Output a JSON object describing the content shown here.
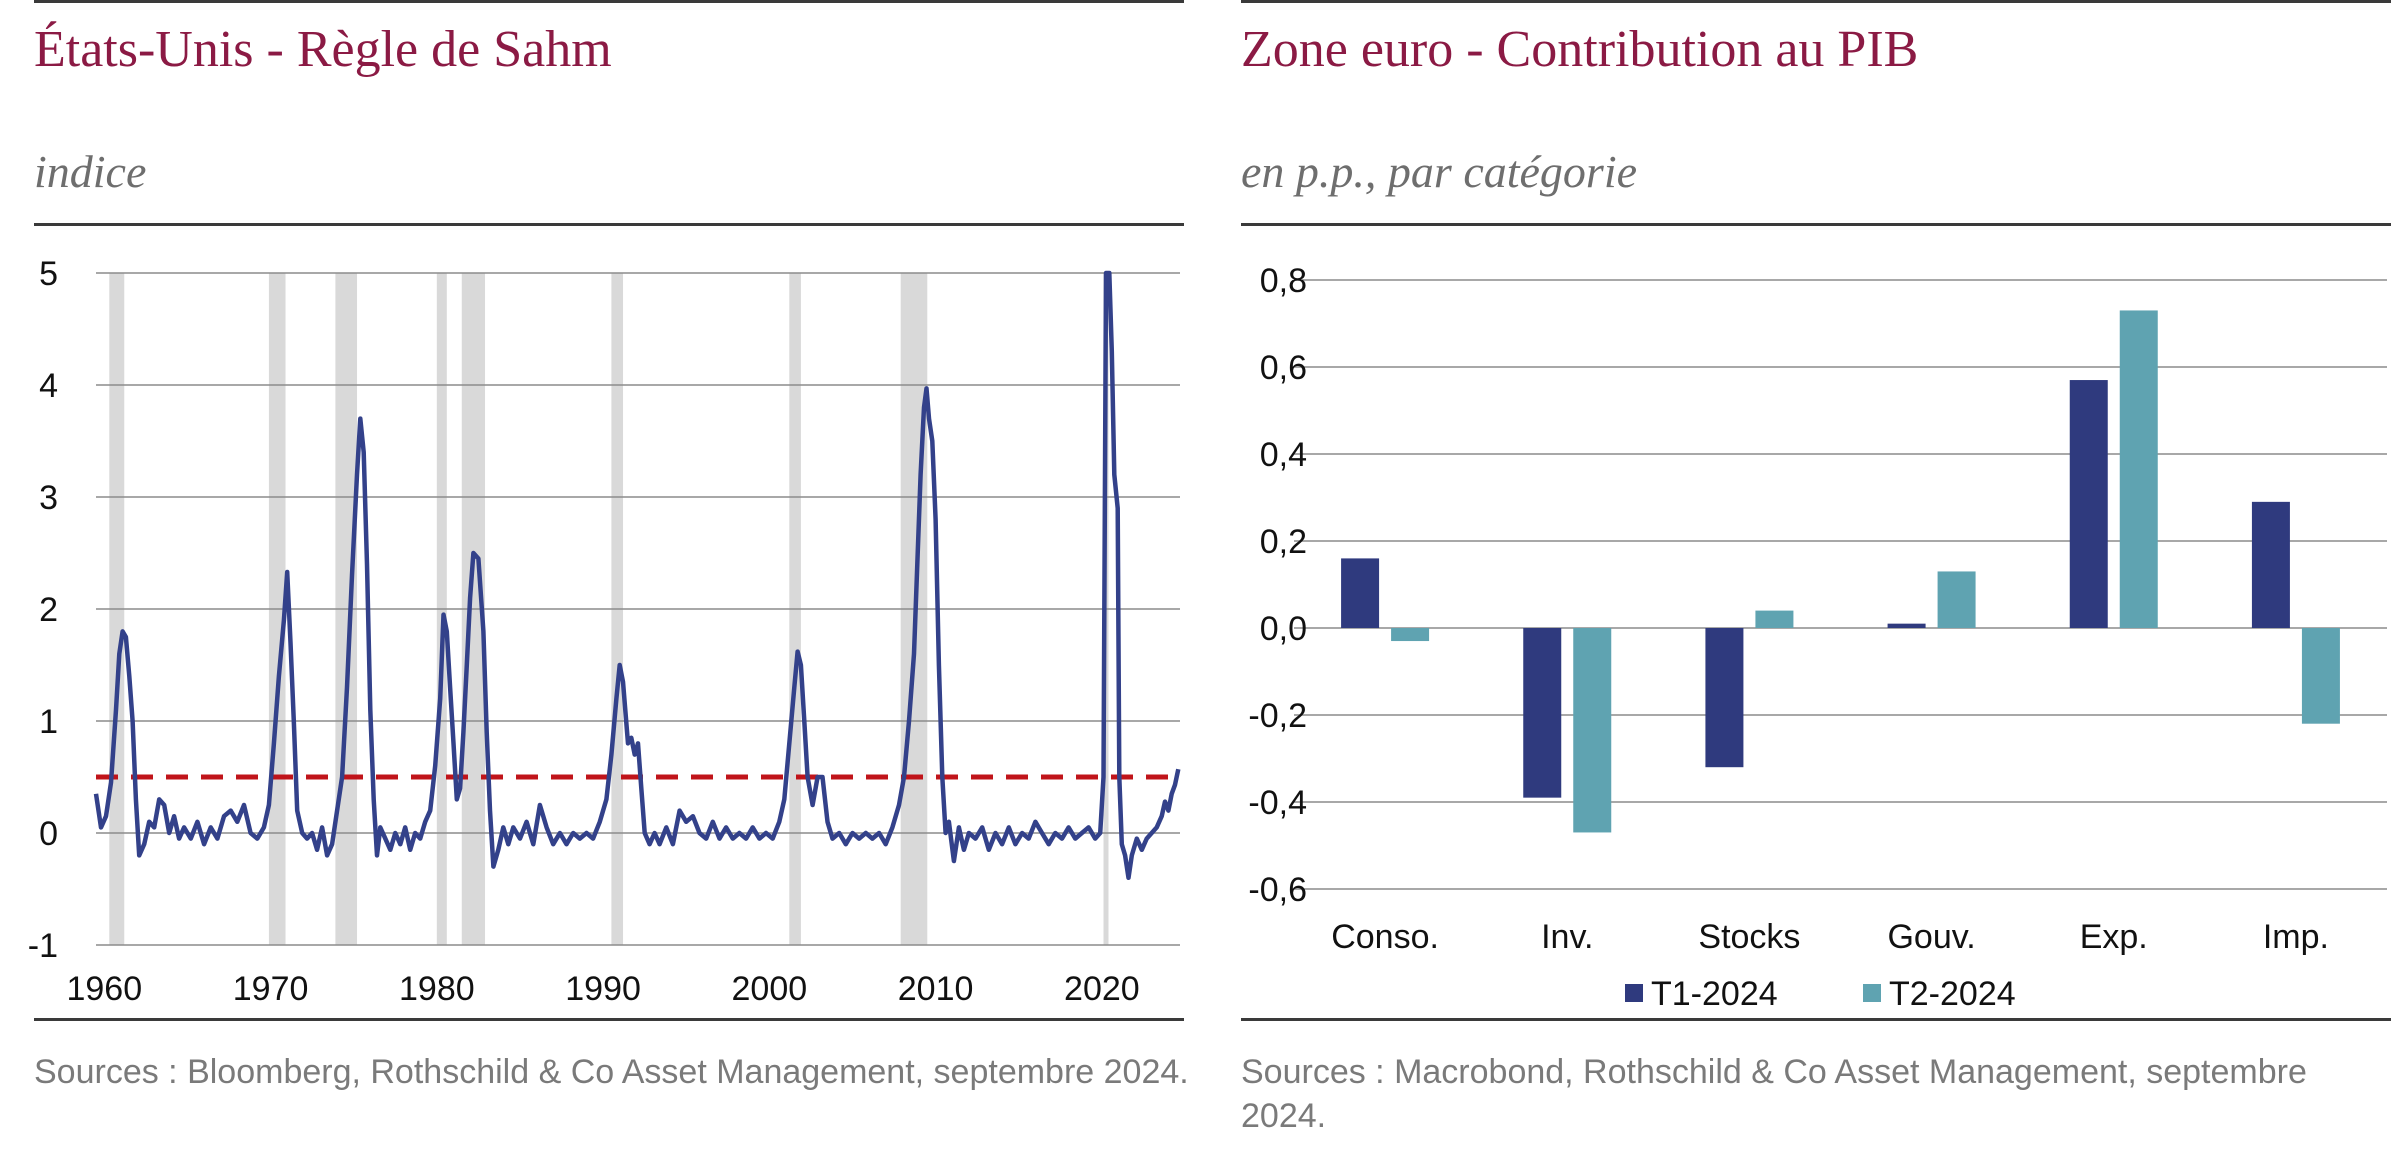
{
  "left": {
    "title": "États-Unis - Règle de Sahm",
    "subtitle": "indice",
    "source": "Sources : Bloomberg, Rothschild & Co Asset Management, septembre 2024."
  },
  "right": {
    "title": "Zone euro - Contribution au PIB",
    "subtitle": "en p.p., par catégorie",
    "source": "Sources : Macrobond, Rothschild & Co Asset Management, septembre 2024."
  },
  "colors": {
    "line": "#33418a",
    "threshold": "#c0141a",
    "recession": "#d9d9d9",
    "t1": "#2f3a7e",
    "t2": "#5fa3b1",
    "grid": "#8c8c8c"
  },
  "chart_data": [
    {
      "type": "line",
      "x_start": 1959.5,
      "x_end": 2024.7,
      "x_ticks": [
        1960,
        1970,
        1980,
        1990,
        2000,
        2010,
        2020
      ],
      "ylim": [
        -1,
        5
      ],
      "y_ticks": [
        5,
        4,
        3,
        2,
        1,
        0,
        -1
      ],
      "grid": true,
      "threshold": 0.5,
      "recessions": [
        [
          1960.3,
          1961.2
        ],
        [
          1969.9,
          1970.9
        ],
        [
          1973.9,
          1975.2
        ],
        [
          1980.0,
          1980.6
        ],
        [
          1981.5,
          1982.9
        ],
        [
          1990.5,
          1991.2
        ],
        [
          2001.2,
          2001.9
        ],
        [
          2007.9,
          2009.5
        ],
        [
          2020.1,
          2020.4
        ]
      ],
      "series": [
        {
          "points": [
            [
              1959.5,
              0.35
            ],
            [
              1959.8,
              0.05
            ],
            [
              1960.1,
              0.15
            ],
            [
              1960.4,
              0.45
            ],
            [
              1960.7,
              1.1
            ],
            [
              1960.9,
              1.6
            ],
            [
              1961.1,
              1.8
            ],
            [
              1961.3,
              1.75
            ],
            [
              1961.5,
              1.4
            ],
            [
              1961.7,
              1.0
            ],
            [
              1961.9,
              0.3
            ],
            [
              1962.1,
              -0.2
            ],
            [
              1962.4,
              -0.1
            ],
            [
              1962.7,
              0.1
            ],
            [
              1963.0,
              0.05
            ],
            [
              1963.3,
              0.3
            ],
            [
              1963.6,
              0.25
            ],
            [
              1963.9,
              0.0
            ],
            [
              1964.2,
              0.15
            ],
            [
              1964.5,
              -0.05
            ],
            [
              1964.8,
              0.05
            ],
            [
              1965.2,
              -0.05
            ],
            [
              1965.6,
              0.1
            ],
            [
              1966.0,
              -0.1
            ],
            [
              1966.4,
              0.05
            ],
            [
              1966.8,
              -0.05
            ],
            [
              1967.2,
              0.15
            ],
            [
              1967.6,
              0.2
            ],
            [
              1968.0,
              0.1
            ],
            [
              1968.4,
              0.25
            ],
            [
              1968.8,
              0.0
            ],
            [
              1969.2,
              -0.05
            ],
            [
              1969.6,
              0.05
            ],
            [
              1969.9,
              0.25
            ],
            [
              1970.2,
              0.8
            ],
            [
              1970.5,
              1.4
            ],
            [
              1970.8,
              1.9
            ],
            [
              1971.0,
              2.33
            ],
            [
              1971.2,
              1.7
            ],
            [
              1971.4,
              1.0
            ],
            [
              1971.6,
              0.2
            ],
            [
              1971.9,
              0.0
            ],
            [
              1972.2,
              -0.05
            ],
            [
              1972.5,
              0.0
            ],
            [
              1972.8,
              -0.15
            ],
            [
              1973.1,
              0.05
            ],
            [
              1973.4,
              -0.2
            ],
            [
              1973.7,
              -0.1
            ],
            [
              1974.0,
              0.2
            ],
            [
              1974.3,
              0.5
            ],
            [
              1974.6,
              1.3
            ],
            [
              1974.9,
              2.3
            ],
            [
              1975.2,
              3.2
            ],
            [
              1975.4,
              3.7
            ],
            [
              1975.6,
              3.4
            ],
            [
              1975.8,
              2.4
            ],
            [
              1976.0,
              1.1
            ],
            [
              1976.2,
              0.3
            ],
            [
              1976.4,
              -0.2
            ],
            [
              1976.6,
              0.05
            ],
            [
              1976.9,
              -0.05
            ],
            [
              1977.2,
              -0.15
            ],
            [
              1977.5,
              0.0
            ],
            [
              1977.8,
              -0.1
            ],
            [
              1978.1,
              0.05
            ],
            [
              1978.4,
              -0.15
            ],
            [
              1978.7,
              0.0
            ],
            [
              1979.0,
              -0.05
            ],
            [
              1979.3,
              0.1
            ],
            [
              1979.6,
              0.2
            ],
            [
              1979.9,
              0.6
            ],
            [
              1980.2,
              1.2
            ],
            [
              1980.4,
              1.95
            ],
            [
              1980.6,
              1.8
            ],
            [
              1980.8,
              1.3
            ],
            [
              1981.0,
              0.8
            ],
            [
              1981.2,
              0.3
            ],
            [
              1981.4,
              0.4
            ],
            [
              1981.6,
              0.9
            ],
            [
              1981.8,
              1.5
            ],
            [
              1982.0,
              2.1
            ],
            [
              1982.2,
              2.5
            ],
            [
              1982.5,
              2.45
            ],
            [
              1982.8,
              1.8
            ],
            [
              1983.0,
              0.9
            ],
            [
              1983.2,
              0.2
            ],
            [
              1983.4,
              -0.3
            ],
            [
              1983.7,
              -0.15
            ],
            [
              1984.0,
              0.05
            ],
            [
              1984.3,
              -0.1
            ],
            [
              1984.6,
              0.05
            ],
            [
              1985.0,
              -0.05
            ],
            [
              1985.4,
              0.1
            ],
            [
              1985.8,
              -0.1
            ],
            [
              1986.2,
              0.25
            ],
            [
              1986.6,
              0.05
            ],
            [
              1987.0,
              -0.1
            ],
            [
              1987.4,
              0.0
            ],
            [
              1987.8,
              -0.1
            ],
            [
              1988.2,
              0.0
            ],
            [
              1988.6,
              -0.05
            ],
            [
              1989.0,
              0.0
            ],
            [
              1989.4,
              -0.05
            ],
            [
              1989.8,
              0.1
            ],
            [
              1990.2,
              0.3
            ],
            [
              1990.5,
              0.7
            ],
            [
              1990.8,
              1.2
            ],
            [
              1991.0,
              1.5
            ],
            [
              1991.2,
              1.35
            ],
            [
              1991.5,
              0.8
            ],
            [
              1991.7,
              0.85
            ],
            [
              1991.9,
              0.7
            ],
            [
              1992.1,
              0.8
            ],
            [
              1992.3,
              0.4
            ],
            [
              1992.5,
              0.0
            ],
            [
              1992.8,
              -0.1
            ],
            [
              1993.1,
              0.0
            ],
            [
              1993.4,
              -0.1
            ],
            [
              1993.8,
              0.05
            ],
            [
              1994.2,
              -0.1
            ],
            [
              1994.6,
              0.2
            ],
            [
              1995.0,
              0.1
            ],
            [
              1995.4,
              0.15
            ],
            [
              1995.8,
              0.0
            ],
            [
              1996.2,
              -0.05
            ],
            [
              1996.6,
              0.1
            ],
            [
              1997.0,
              -0.05
            ],
            [
              1997.4,
              0.05
            ],
            [
              1997.8,
              -0.05
            ],
            [
              1998.2,
              0.0
            ],
            [
              1998.6,
              -0.05
            ],
            [
              1999.0,
              0.05
            ],
            [
              1999.4,
              -0.05
            ],
            [
              1999.8,
              0.0
            ],
            [
              2000.2,
              -0.05
            ],
            [
              2000.6,
              0.1
            ],
            [
              2000.9,
              0.3
            ],
            [
              2001.2,
              0.8
            ],
            [
              2001.5,
              1.3
            ],
            [
              2001.7,
              1.62
            ],
            [
              2001.9,
              1.5
            ],
            [
              2002.1,
              1.0
            ],
            [
              2002.3,
              0.5
            ],
            [
              2002.6,
              0.25
            ],
            [
              2002.9,
              0.5
            ],
            [
              2003.2,
              0.5
            ],
            [
              2003.5,
              0.1
            ],
            [
              2003.8,
              -0.05
            ],
            [
              2004.2,
              0.0
            ],
            [
              2004.6,
              -0.1
            ],
            [
              2005.0,
              0.0
            ],
            [
              2005.4,
              -0.05
            ],
            [
              2005.8,
              0.0
            ],
            [
              2006.2,
              -0.05
            ],
            [
              2006.6,
              0.0
            ],
            [
              2007.0,
              -0.1
            ],
            [
              2007.4,
              0.05
            ],
            [
              2007.8,
              0.25
            ],
            [
              2008.1,
              0.5
            ],
            [
              2008.4,
              1.0
            ],
            [
              2008.7,
              1.6
            ],
            [
              2008.9,
              2.4
            ],
            [
              2009.1,
              3.2
            ],
            [
              2009.3,
              3.8
            ],
            [
              2009.45,
              3.97
            ],
            [
              2009.6,
              3.7
            ],
            [
              2009.8,
              3.5
            ],
            [
              2010.0,
              2.8
            ],
            [
              2010.2,
              1.5
            ],
            [
              2010.4,
              0.5
            ],
            [
              2010.6,
              0.0
            ],
            [
              2010.8,
              0.1
            ],
            [
              2011.1,
              -0.25
            ],
            [
              2011.4,
              0.05
            ],
            [
              2011.7,
              -0.15
            ],
            [
              2012.0,
              0.0
            ],
            [
              2012.4,
              -0.05
            ],
            [
              2012.8,
              0.05
            ],
            [
              2013.2,
              -0.15
            ],
            [
              2013.6,
              0.0
            ],
            [
              2014.0,
              -0.1
            ],
            [
              2014.4,
              0.05
            ],
            [
              2014.8,
              -0.1
            ],
            [
              2015.2,
              0.0
            ],
            [
              2015.6,
              -0.05
            ],
            [
              2016.0,
              0.1
            ],
            [
              2016.4,
              0.0
            ],
            [
              2016.8,
              -0.1
            ],
            [
              2017.2,
              0.0
            ],
            [
              2017.6,
              -0.05
            ],
            [
              2018.0,
              0.05
            ],
            [
              2018.4,
              -0.05
            ],
            [
              2018.8,
              0.0
            ],
            [
              2019.2,
              0.05
            ],
            [
              2019.6,
              -0.05
            ],
            [
              2019.9,
              0.0
            ],
            [
              2020.1,
              0.5
            ],
            [
              2020.25,
              5.0
            ],
            [
              2020.45,
              5.0
            ],
            [
              2020.6,
              4.3
            ],
            [
              2020.75,
              3.2
            ],
            [
              2020.95,
              2.9
            ],
            [
              2021.05,
              0.5
            ],
            [
              2021.2,
              -0.1
            ],
            [
              2021.4,
              -0.2
            ],
            [
              2021.6,
              -0.4
            ],
            [
              2021.8,
              -0.2
            ],
            [
              2022.1,
              -0.05
            ],
            [
              2022.4,
              -0.15
            ],
            [
              2022.7,
              -0.05
            ],
            [
              2023.0,
              0.0
            ],
            [
              2023.3,
              0.05
            ],
            [
              2023.6,
              0.15
            ],
            [
              2023.8,
              0.28
            ],
            [
              2024.0,
              0.2
            ],
            [
              2024.2,
              0.35
            ],
            [
              2024.4,
              0.43
            ],
            [
              2024.6,
              0.57
            ]
          ]
        }
      ]
    },
    {
      "type": "bar",
      "categories": [
        "Conso.",
        "Inv.",
        "Stocks",
        "Gouv.",
        "Exp.",
        "Imp."
      ],
      "ylim": [
        -0.6,
        0.8
      ],
      "y_ticks": [
        "0,8",
        "0,6",
        "0,4",
        "0,2",
        "0,0",
        "-0,2",
        "-0,4",
        "-0,6"
      ],
      "grid": true,
      "legend_position": "bottom",
      "series": [
        {
          "name": "T1-2024",
          "values": [
            0.16,
            -0.39,
            -0.32,
            0.01,
            0.57,
            0.29
          ]
        },
        {
          "name": "T2-2024",
          "values": [
            -0.03,
            -0.47,
            0.04,
            0.13,
            0.73,
            -0.22
          ]
        }
      ]
    }
  ]
}
